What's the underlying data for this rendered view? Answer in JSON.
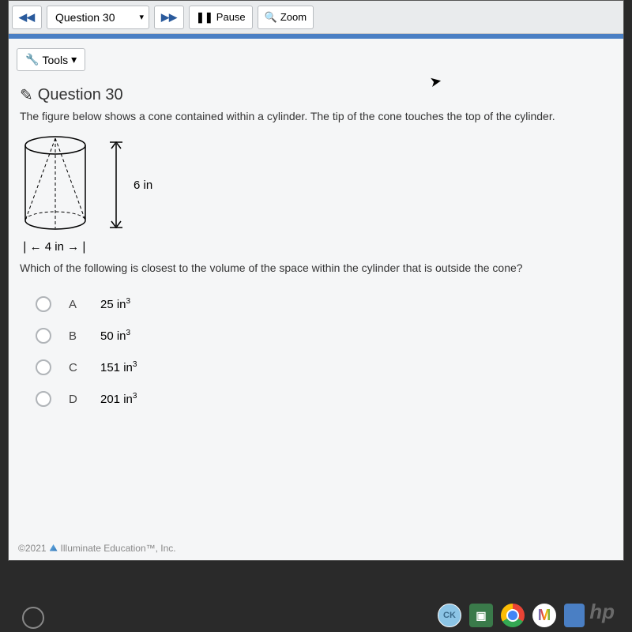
{
  "topbar": {
    "prev": "◀◀",
    "question_selector": "Question 30",
    "next": "▶▶",
    "pause_icon": "❚❚",
    "pause": "Pause",
    "zoom_icon": "🔍",
    "zoom": "Zoom"
  },
  "tools": {
    "icon": "🔧",
    "label": "Tools",
    "caret": "▾"
  },
  "question": {
    "edit_icon": "✎",
    "title": "Question 30",
    "prompt": "The figure below shows a cone contained within a cylinder. The tip of the cone touches the top of the cylinder.",
    "figure": {
      "height_label": "6 in",
      "width_label": "4 in",
      "width_row": "❘← 4 in →❘",
      "stroke": "#000000",
      "dash": "4,3",
      "cyl_w": 80,
      "cyl_h": 110
    },
    "sub": "Which of the following is closest to the volume of the space within the cylinder that is outside the cone?",
    "options": [
      {
        "letter": "A",
        "value": "25 in",
        "exp": "3"
      },
      {
        "letter": "B",
        "value": "50 in",
        "exp": "3"
      },
      {
        "letter": "C",
        "value": "151 in",
        "exp": "3"
      },
      {
        "letter": "D",
        "value": "201 in",
        "exp": "3"
      }
    ]
  },
  "footer": {
    "copyright": "©2021",
    "company": "Illuminate Education™, Inc."
  },
  "hp": "hp"
}
